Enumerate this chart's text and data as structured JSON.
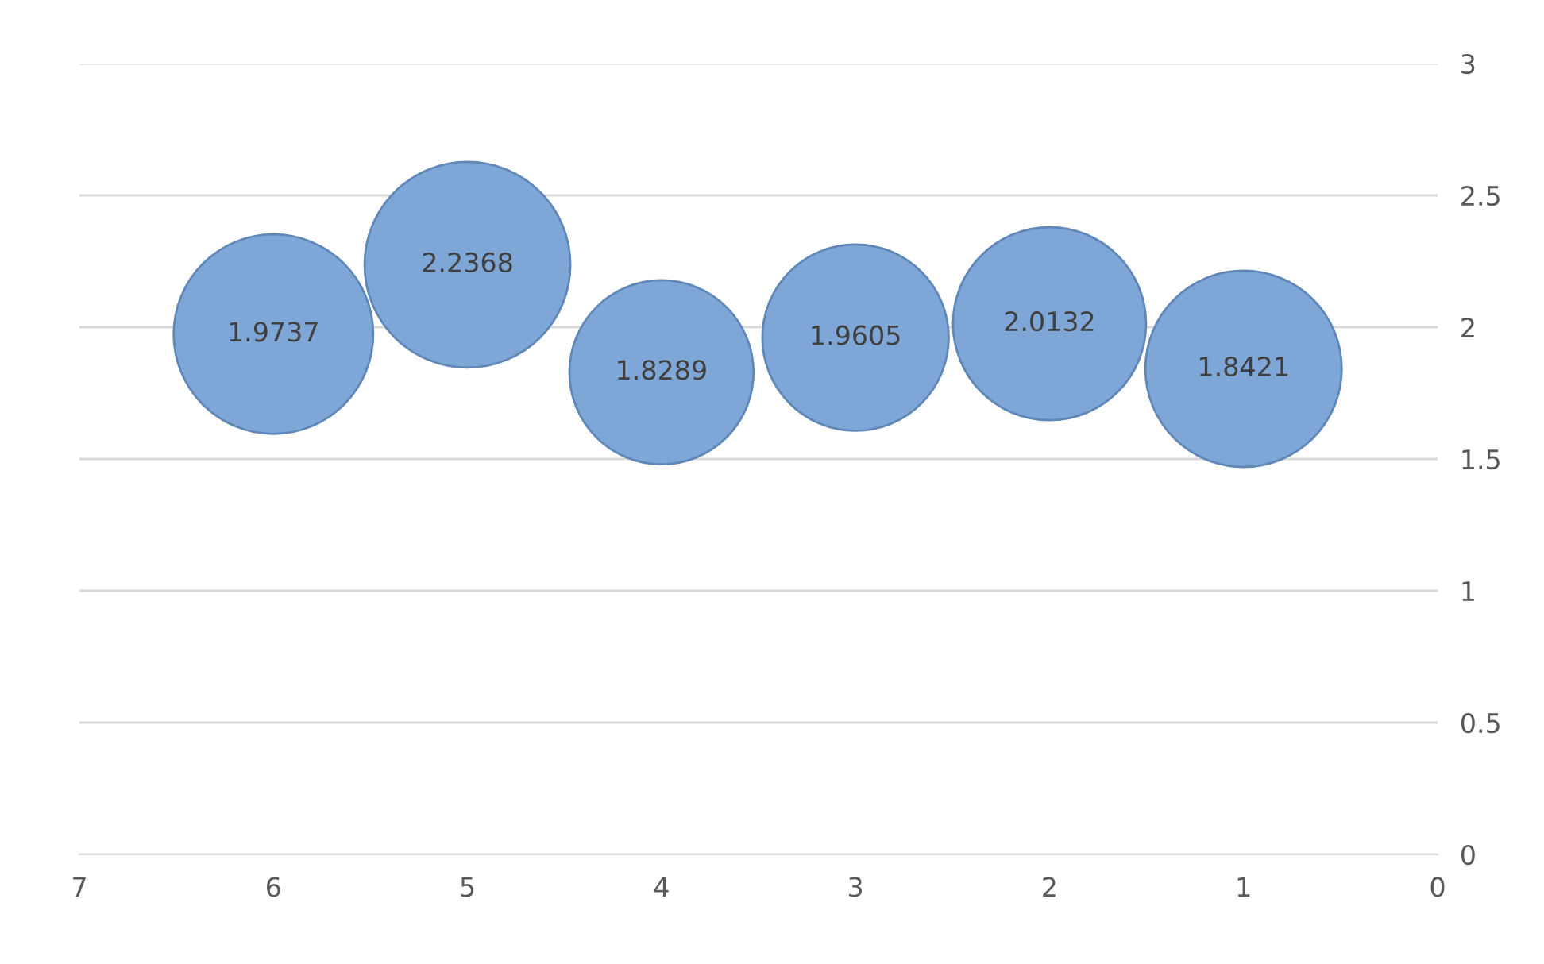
{
  "chart_data": {
    "type": "bubble",
    "x": [
      6,
      5,
      4,
      3,
      2,
      1
    ],
    "values": [
      1.9737,
      2.2368,
      1.8289,
      1.9605,
      2.0132,
      1.8421
    ],
    "sizes": [
      0.94,
      1,
      0.8,
      0.82,
      0.88,
      0.91
    ],
    "color": "#7ea6d6",
    "data_labels": true,
    "xlim": [
      7,
      0
    ],
    "xticks": [
      7,
      6,
      5,
      4,
      3,
      2,
      1,
      0
    ],
    "ylim": [
      0,
      3
    ],
    "yticks": [
      0,
      0.5,
      1,
      1.5,
      2,
      2.5,
      3
    ],
    "grid": "y",
    "legend": false
  }
}
